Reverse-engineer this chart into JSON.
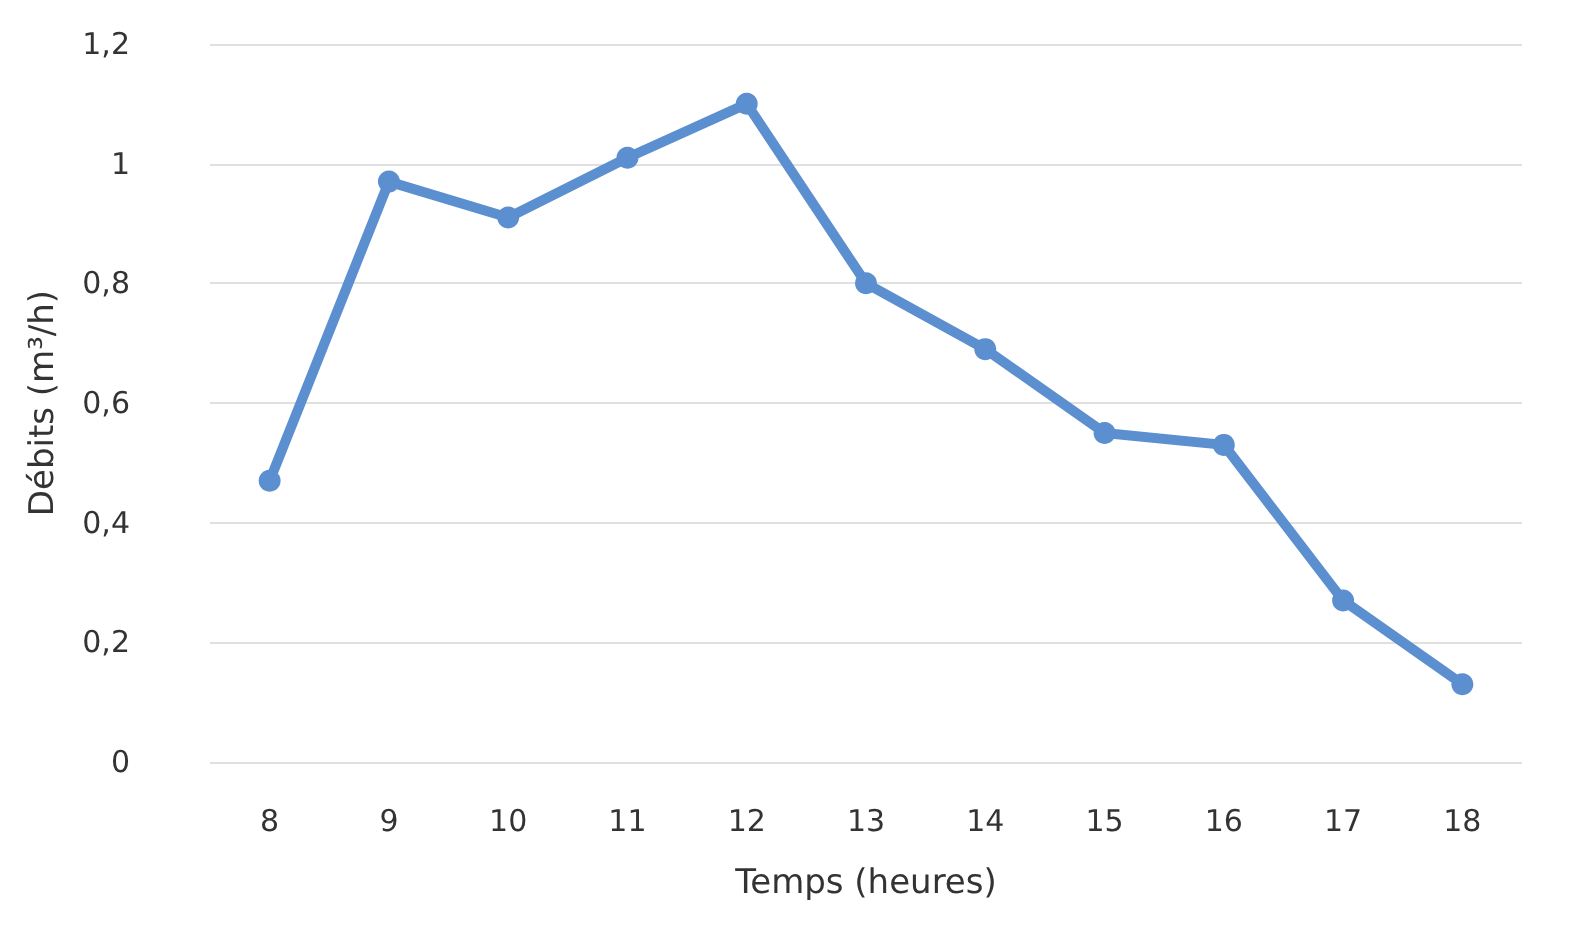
{
  "chart_data": {
    "type": "line",
    "xlabel": "Temps (heures)",
    "ylabel": "Débits (m³/h)",
    "categories": [
      "8",
      "9",
      "10",
      "11",
      "12",
      "13",
      "14",
      "15",
      "16",
      "17",
      "18"
    ],
    "series": [
      {
        "color": "#5b8fcf",
        "values": [
          0.47,
          0.97,
          0.91,
          1.01,
          1.1,
          0.8,
          0.69,
          0.55,
          0.53,
          0.27,
          0.13
        ]
      }
    ],
    "ylim": [
      0,
      1.2
    ],
    "yticks": [
      {
        "value": 0,
        "label": "0"
      },
      {
        "value": 0.2,
        "label": "0,2"
      },
      {
        "value": 0.4,
        "label": "0,4"
      },
      {
        "value": 0.6,
        "label": "0,6"
      },
      {
        "value": 0.8,
        "label": "0,8"
      },
      {
        "value": 1,
        "label": "1"
      },
      {
        "value": 1.2,
        "label": "1,2"
      }
    ],
    "grid": "y",
    "marker": "circle",
    "line_style": "solid"
  }
}
